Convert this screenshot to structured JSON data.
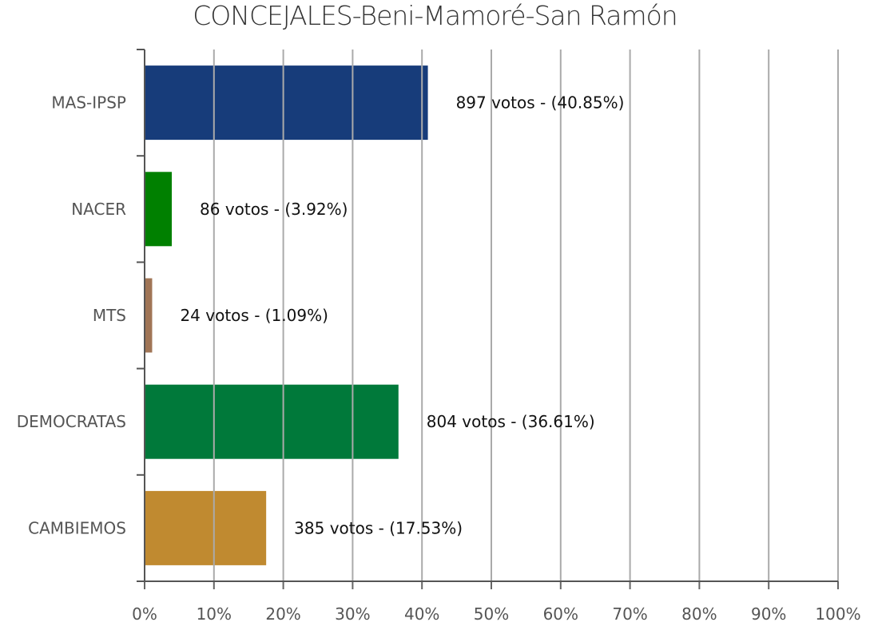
{
  "chart_data": {
    "type": "bar",
    "orientation": "horizontal",
    "title": "CONCEJALES-Beni-Mamoré-San Ramón",
    "categories": [
      "MAS-IPSP",
      "NACER",
      "MTS",
      "DEMOCRATAS",
      "CAMBIEMOS"
    ],
    "values": [
      40.85,
      3.92,
      1.09,
      36.61,
      17.53
    ],
    "votes": [
      897,
      86,
      24,
      804,
      385
    ],
    "data_labels": [
      "897 votos - (40.85%)",
      "86 votos - (3.92%)",
      "24 votos - (1.09%)",
      "804 votos - (36.61%)",
      "385 votos - (17.53%)"
    ],
    "colors": [
      "#173c7a",
      "#008000",
      "#a07556",
      "#00793a",
      "#c08a30"
    ],
    "xlim": [
      0,
      100
    ],
    "x_ticks": [
      "0%",
      "10%",
      "20%",
      "30%",
      "40%",
      "50%",
      "60%",
      "70%",
      "80%",
      "90%",
      "100%"
    ],
    "grid": true,
    "legend": "none"
  }
}
